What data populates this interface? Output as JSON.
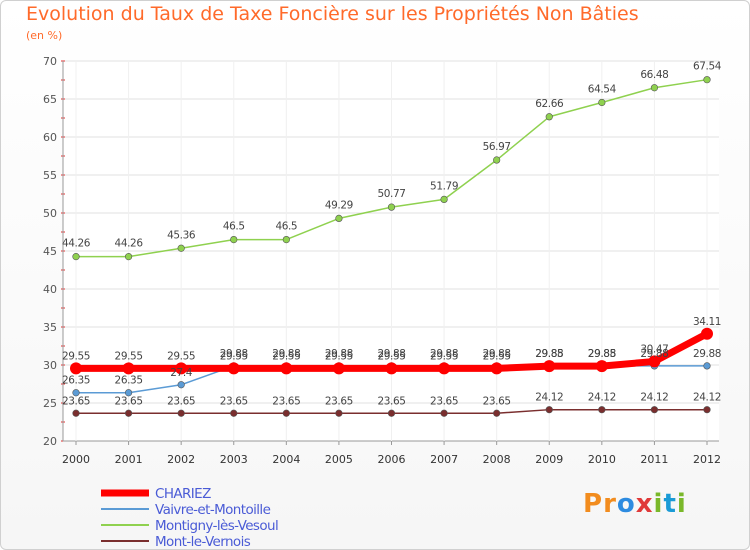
{
  "chart_data": {
    "type": "line",
    "title": "Evolution du Taux de Taxe Foncière sur les Propriétés Non Bâties",
    "ylabel": "(en %)",
    "xlabel": "",
    "ylim": [
      20,
      70
    ],
    "yticks": [
      "20",
      "25",
      "30",
      "35",
      "40",
      "45",
      "50",
      "55",
      "60",
      "65",
      "70"
    ],
    "categories": [
      "2000",
      "2001",
      "2002",
      "2003",
      "2004",
      "2005",
      "2006",
      "2007",
      "2008",
      "2009",
      "2010",
      "2011",
      "2012"
    ],
    "series": [
      {
        "name": "CHARIEZ",
        "color": "#ff0000",
        "values": [
          29.55,
          29.55,
          29.55,
          29.55,
          29.55,
          29.55,
          29.55,
          29.55,
          29.55,
          29.85,
          29.85,
          30.47,
          34.11
        ],
        "labels": [
          "29.55",
          "29.55",
          "29.55",
          "29.55",
          "29.55",
          "29.55",
          "29.55",
          "29.55",
          "29.55",
          "29.85",
          "29.85",
          "30.47",
          "34.11"
        ]
      },
      {
        "name": "Vaivre-et-Montoille",
        "color": "#5b9bd5",
        "values": [
          26.35,
          26.35,
          27.4,
          29.88,
          29.88,
          29.88,
          29.88,
          29.88,
          29.88,
          29.88,
          29.88,
          29.88,
          29.88
        ],
        "labels": [
          "26.35",
          "26.35",
          "27.4",
          "29.88",
          "29.88",
          "29.88",
          "29.88",
          "29.88",
          "29.88",
          "29.88",
          "29.88",
          "29.88",
          "29.88"
        ]
      },
      {
        "name": "Montigny-lès-Vesoul",
        "color": "#8fd14f",
        "values": [
          44.26,
          44.26,
          45.36,
          46.5,
          46.5,
          49.29,
          50.77,
          51.79,
          56.97,
          62.66,
          64.54,
          66.48,
          67.54
        ],
        "labels": [
          "44.26",
          "44.26",
          "45.36",
          "46.5",
          "46.5",
          "49.29",
          "50.77",
          "51.79",
          "56.97",
          "62.66",
          "64.54",
          "66.48",
          "67.54"
        ]
      },
      {
        "name": "Mont-le-Vernois",
        "color": "#7a2e2e",
        "values": [
          23.65,
          23.65,
          23.65,
          23.65,
          23.65,
          23.65,
          23.65,
          23.65,
          23.65,
          24.12,
          24.12,
          24.12,
          24.12
        ],
        "labels": [
          "23.65",
          "23.65",
          "23.65",
          "23.65",
          "23.65",
          "23.65",
          "23.65",
          "23.65",
          "23.65",
          "24.12",
          "24.12",
          "24.12",
          "24.12"
        ]
      }
    ],
    "legend_position": "bottom-left"
  },
  "logo": {
    "parts": [
      "P",
      "r",
      "o",
      "x",
      "i",
      "t",
      "i"
    ]
  }
}
